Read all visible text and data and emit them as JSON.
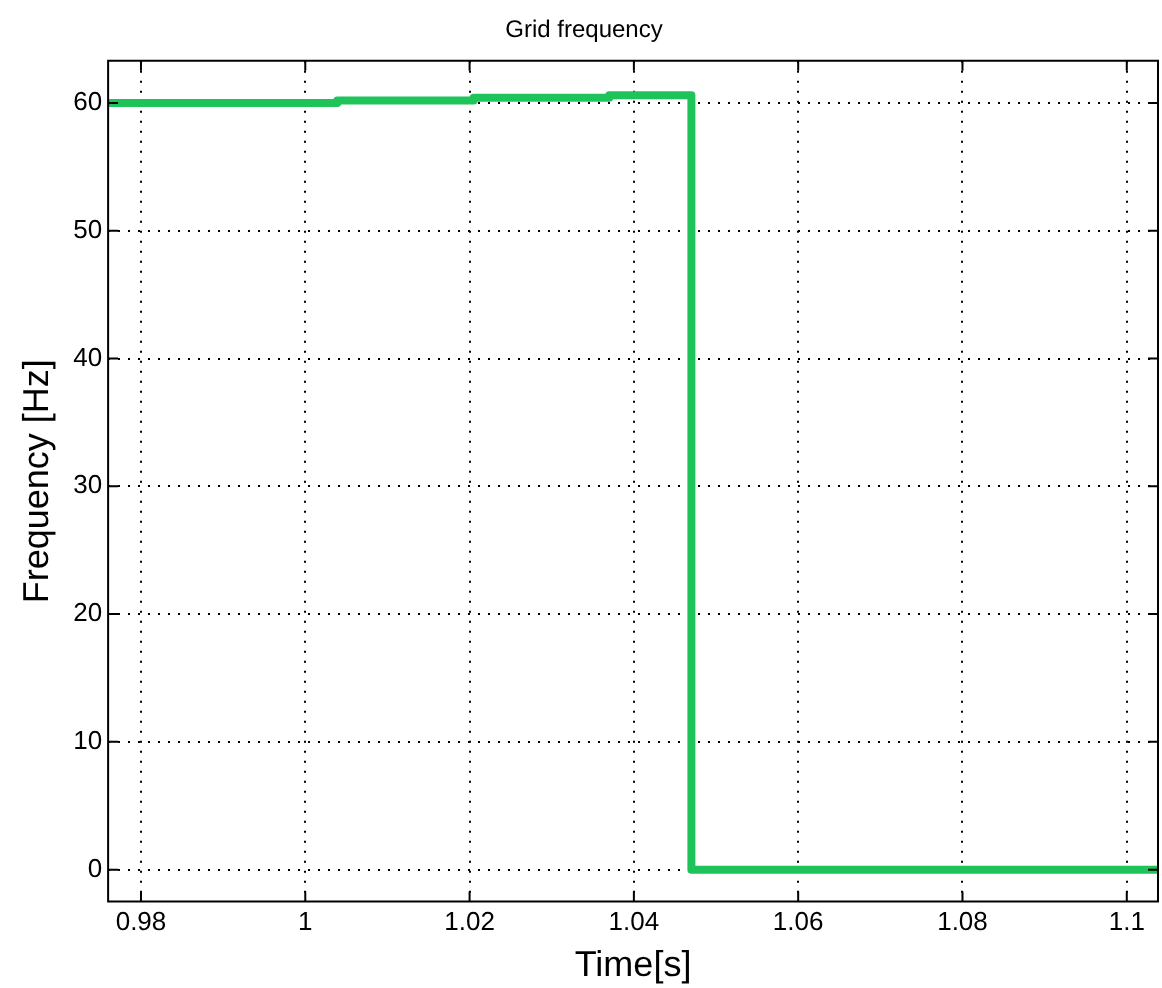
{
  "chart_data": {
    "type": "step",
    "title": "Grid frequency",
    "xlabel": "Time[s]",
    "ylabel": "Frequency [Hz]",
    "x": [
      0.976,
      1.0039,
      1.0205,
      1.037,
      1.047,
      1.1038
    ],
    "series": [
      {
        "color": "#1ec35a",
        "values": [
          60,
          60.2,
          60.4,
          60.6,
          0,
          0
        ]
      }
    ],
    "xlim": [
      0.976,
      1.1038
    ],
    "xticks": [
      0.98,
      1,
      1.02,
      1.04,
      1.06,
      1.08,
      1.1
    ],
    "ylim": [
      -2.5,
      63.3
    ],
    "yticks": [
      0,
      10,
      20,
      30,
      40,
      50,
      60
    ],
    "grid": true,
    "legend": false,
    "marker": "none",
    "line_style": "solid"
  }
}
